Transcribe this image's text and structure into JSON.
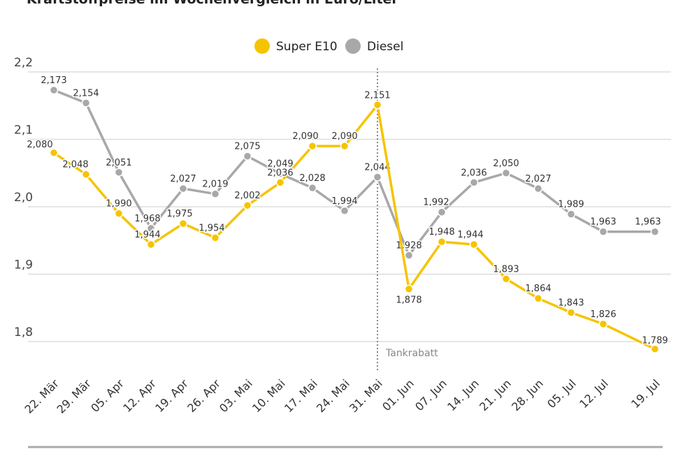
{
  "title": "Kraftstoffpreise im Wochenvergleich in Euro/Liter",
  "chart_data": {
    "type": "line",
    "title": "Kraftstoffpreise im Wochenvergleich in Euro/Liter",
    "categories": [
      "22. Mär",
      "29. Mär",
      "05. Apr",
      "12. Apr",
      "19. Apr",
      "26. Apr",
      "03. Mai",
      "10. Mai",
      "17. Mai",
      "24. Mai",
      "31. Mai",
      "01. Jun",
      "07. Jun",
      "14. Jun",
      "21. Jun",
      "28. Jun",
      "05. Jul",
      "12. Jul",
      "19. Jul"
    ],
    "series": [
      {
        "name": "Super E10",
        "color": "#f5c400",
        "values": [
          2.08,
          2.048,
          1.99,
          1.944,
          1.975,
          1.954,
          2.002,
          2.036,
          2.09,
          2.09,
          2.151,
          1.878,
          1.948,
          1.944,
          1.893,
          1.864,
          1.843,
          1.826,
          1.789
        ],
        "labels": [
          "2,080",
          "2,048",
          "1,990",
          "1,944",
          "1,975",
          "1,954",
          "2,002",
          "2,036",
          "2,090",
          "2,090",
          "2,151",
          "1,878",
          "1,948",
          "1,944",
          "1,893",
          "1,864",
          "1,843",
          "1,826",
          "1,789"
        ]
      },
      {
        "name": "Diesel",
        "color": "#a8a8a8",
        "values": [
          2.173,
          2.154,
          2.051,
          1.968,
          2.027,
          2.019,
          2.075,
          2.049,
          2.028,
          1.994,
          2.044,
          1.928,
          1.992,
          2.036,
          2.05,
          2.027,
          1.989,
          1.963,
          1.963
        ],
        "labels": [
          "2,173",
          "2,154",
          "2,051",
          "1,968",
          "2,027",
          "2,019",
          "2,075",
          "2,049",
          "2,028",
          "1,994",
          "2,044",
          "1,928",
          "1,992",
          "2,036",
          "2,050",
          "2,027",
          "1,989",
          "1,963",
          "1,963"
        ]
      }
    ],
    "yticks": [
      "2,2",
      "2,1",
      "2,0",
      "1,9",
      "1,8"
    ],
    "ytick_values": [
      2.2,
      2.1,
      2.0,
      1.9,
      1.8
    ],
    "ylim": [
      1.8,
      2.2
    ],
    "grid": true,
    "legend": "top-center",
    "annotation": {
      "label": "Tankrabatt",
      "at": "31. Mai"
    }
  }
}
